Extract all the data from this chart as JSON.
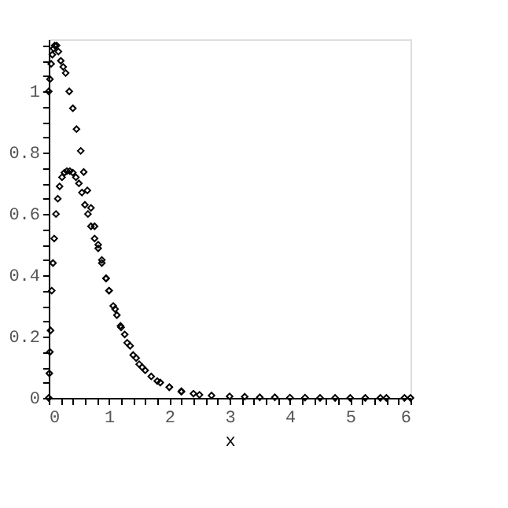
{
  "chart_data": {
    "type": "scatter",
    "xlabel": "x",
    "marker": "diamond",
    "grid": false,
    "legend": false,
    "xlim": [
      0,
      6
    ],
    "ylim": [
      0,
      1.17
    ],
    "xticks": [
      0,
      {
        "value": 0.2,
        "label": null
      },
      {
        "value": 0.4,
        "label": null
      },
      {
        "value": 0.6,
        "label": null
      },
      {
        "value": 0.8,
        "label": null
      },
      1,
      {
        "value": 1.2,
        "label": null
      },
      {
        "value": 1.4,
        "label": null
      },
      {
        "value": 1.6,
        "label": null
      },
      {
        "value": 1.8,
        "label": null
      },
      2,
      {
        "value": 2.2,
        "label": null
      },
      {
        "value": 2.4,
        "label": null
      },
      {
        "value": 2.6,
        "label": null
      },
      {
        "value": 2.8,
        "label": null
      },
      3,
      {
        "value": 3.2,
        "label": null
      },
      {
        "value": 3.4,
        "label": null
      },
      {
        "value": 3.6,
        "label": null
      },
      {
        "value": 3.8,
        "label": null
      },
      4,
      {
        "value": 4.2,
        "label": null
      },
      {
        "value": 4.4,
        "label": null
      },
      {
        "value": 4.6,
        "label": null
      },
      {
        "value": 4.8,
        "label": null
      },
      5,
      {
        "value": 5.2,
        "label": null
      },
      {
        "value": 5.4,
        "label": null
      },
      {
        "value": 5.6,
        "label": null
      },
      {
        "value": 5.8,
        "label": null
      },
      6
    ],
    "yticks": [
      0,
      {
        "value": 0.05,
        "label": null
      },
      {
        "value": 0.1,
        "label": null
      },
      {
        "value": 0.15,
        "label": null
      },
      0.2,
      {
        "value": 0.25,
        "label": null
      },
      {
        "value": 0.3,
        "label": null
      },
      {
        "value": 0.35,
        "label": null
      },
      0.4,
      {
        "value": 0.45,
        "label": null
      },
      {
        "value": 0.5,
        "label": null
      },
      {
        "value": 0.55,
        "label": null
      },
      0.6,
      {
        "value": 0.65,
        "label": null
      },
      {
        "value": 0.7,
        "label": null
      },
      {
        "value": 0.75,
        "label": null
      },
      0.8,
      {
        "value": 0.85,
        "label": null
      },
      {
        "value": 0.9,
        "label": null
      },
      {
        "value": 0.95,
        "label": null
      },
      1,
      {
        "value": 1.05,
        "label": null
      },
      {
        "value": 1.1,
        "label": null
      },
      {
        "value": 1.15,
        "label": null
      }
    ],
    "series": [
      {
        "color": "#000000",
        "x": [
          0,
          0.02,
          0.04,
          0.06,
          0.08,
          0.1,
          0.13,
          0.16,
          0.2,
          0.24,
          0.28,
          0.34,
          0.4,
          0.46,
          0.53,
          0.58,
          0.64,
          0.7,
          0.76,
          0.82,
          0.88,
          0.95,
          1.0,
          1.1,
          1.2,
          1.3,
          1.4,
          1.5,
          1.6,
          1.8,
          2.0,
          2.2,
          2.5,
          3.25,
          3.75,
          4.25,
          4.75,
          5.25,
          5.6,
          5.9
        ],
        "values": [
          1.0,
          1.04,
          1.09,
          1.12,
          1.14,
          1.15,
          1.15,
          1.13,
          1.1,
          1.08,
          1.06,
          1.0,
          0.945,
          0.877,
          0.806,
          0.737,
          0.677,
          0.62,
          0.56,
          0.5,
          0.45,
          0.39,
          0.35,
          0.29,
          0.23,
          0.18,
          0.14,
          0.11,
          0.09,
          0.055,
          0.035,
          0.02,
          0.01,
          0.004,
          0.002,
          0.001,
          0,
          0,
          0,
          0
        ]
      },
      {
        "color": "#000000",
        "x": [
          0,
          0.01,
          0.02,
          0.03,
          0.05,
          0.07,
          0.09,
          0.12,
          0.15,
          0.18,
          0.22,
          0.26,
          0.3,
          0.35,
          0.4,
          0.45,
          0.5,
          0.55,
          0.6,
          0.65,
          0.7,
          0.76,
          0.82,
          0.88,
          0.95,
          1.0,
          1.07,
          1.13,
          1.19,
          1.26,
          1.35,
          1.45,
          1.55,
          1.7,
          1.85,
          2,
          2.2,
          2.4,
          2.7,
          3,
          3.5,
          4,
          4.5,
          5,
          5.5,
          6
        ],
        "values": [
          0,
          0.08,
          0.15,
          0.22,
          0.35,
          0.44,
          0.52,
          0.6,
          0.65,
          0.69,
          0.72,
          0.735,
          0.74,
          0.74,
          0.735,
          0.72,
          0.7,
          0.67,
          0.63,
          0.6,
          0.56,
          0.52,
          0.488,
          0.44,
          0.39,
          0.35,
          0.3,
          0.27,
          0.235,
          0.207,
          0.17,
          0.13,
          0.1,
          0.07,
          0.05,
          0.035,
          0.022,
          0.014,
          0.008,
          0.005,
          0.002,
          0.001,
          0,
          0,
          0,
          0
        ]
      }
    ]
  }
}
